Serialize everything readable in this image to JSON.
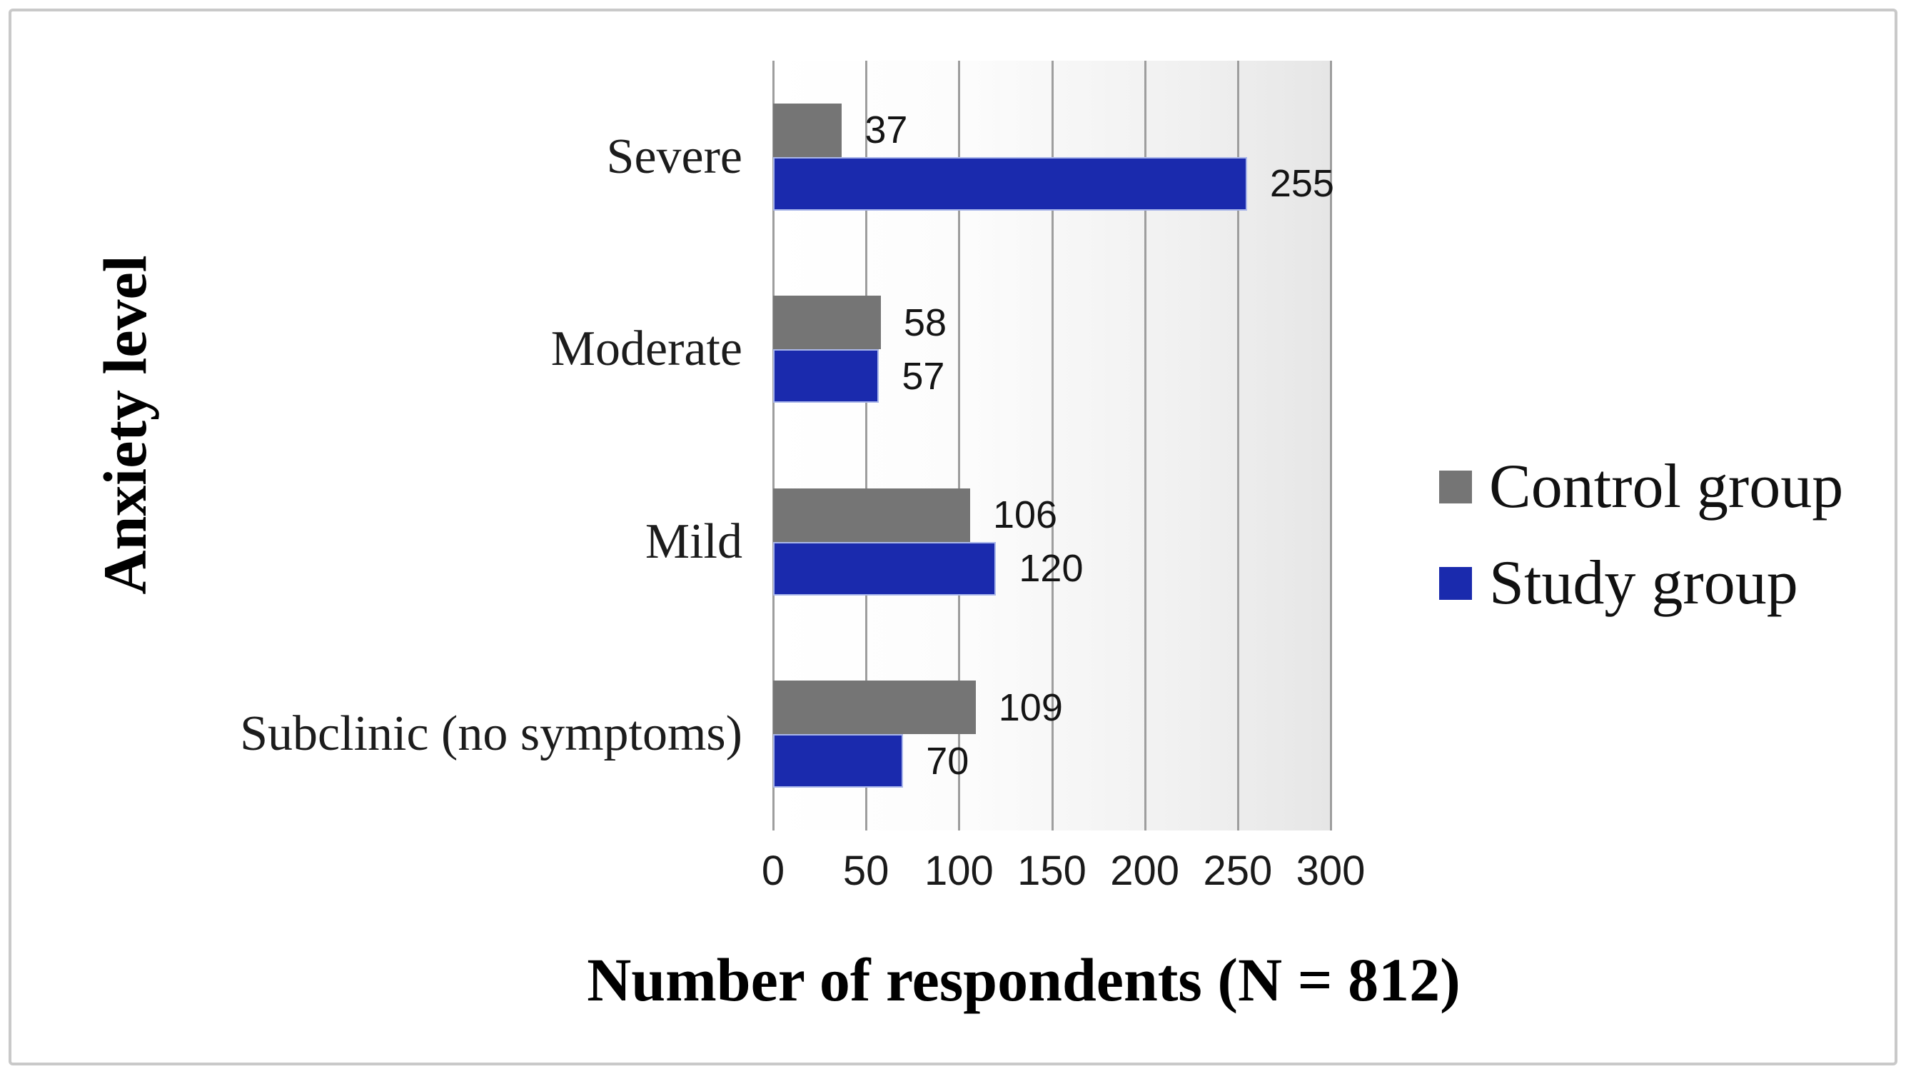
{
  "chart_data": {
    "type": "bar",
    "orientation": "horizontal",
    "xlabel": "Number of respondents (N = 812)",
    "ylabel": "Anxiety level",
    "categories": [
      "Severe",
      "Moderate",
      "Mild",
      "Subclinic (no symptoms)"
    ],
    "series": [
      {
        "name": "Control group",
        "color": "#757575",
        "values": [
          37,
          58,
          106,
          109
        ]
      },
      {
        "name": "Study group",
        "color": "#1a2aad",
        "values": [
          255,
          57,
          120,
          70
        ]
      }
    ],
    "xlim": [
      0,
      300
    ],
    "xticks": [
      0,
      50,
      100,
      150,
      200,
      250,
      300
    ],
    "grid": true,
    "legend_position": "right",
    "gridline_color": "#9e9e9e",
    "plot_bg_right": "#e6e6e6"
  }
}
